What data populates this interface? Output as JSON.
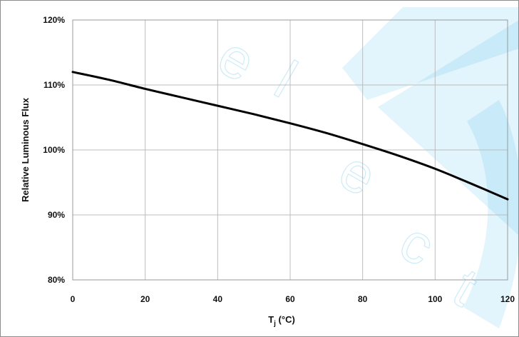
{
  "chart_data": {
    "type": "line",
    "title": "",
    "xlabel": "T",
    "xlabel_sub": "j",
    "xlabel_unit": " (°C)",
    "ylabel": "Relative Luminous Flux",
    "xlim": [
      0,
      120
    ],
    "ylim": [
      80,
      120
    ],
    "x_ticks": [
      0,
      20,
      40,
      60,
      80,
      100,
      120
    ],
    "x_tick_labels": [
      "0",
      "20",
      "40",
      "60",
      "80",
      "100",
      "120"
    ],
    "y_ticks": [
      80,
      90,
      100,
      110,
      120
    ],
    "y_tick_labels": [
      "80%",
      "90%",
      "100%",
      "110%",
      "120%"
    ],
    "grid": true,
    "legend": "none",
    "series": [
      {
        "color": "#000000",
        "x": [
          0,
          10,
          20,
          30,
          40,
          50,
          60,
          70,
          80,
          90,
          100,
          110,
          120
        ],
        "y": [
          112.0,
          110.8,
          109.4,
          108.1,
          106.8,
          105.5,
          104.1,
          102.6,
          100.9,
          99.1,
          97.1,
          94.8,
          92.4
        ]
      }
    ]
  },
  "watermark": {
    "letters": [
      "e",
      "l",
      "e",
      "c",
      "t"
    ],
    "color": "#12a8e8"
  }
}
